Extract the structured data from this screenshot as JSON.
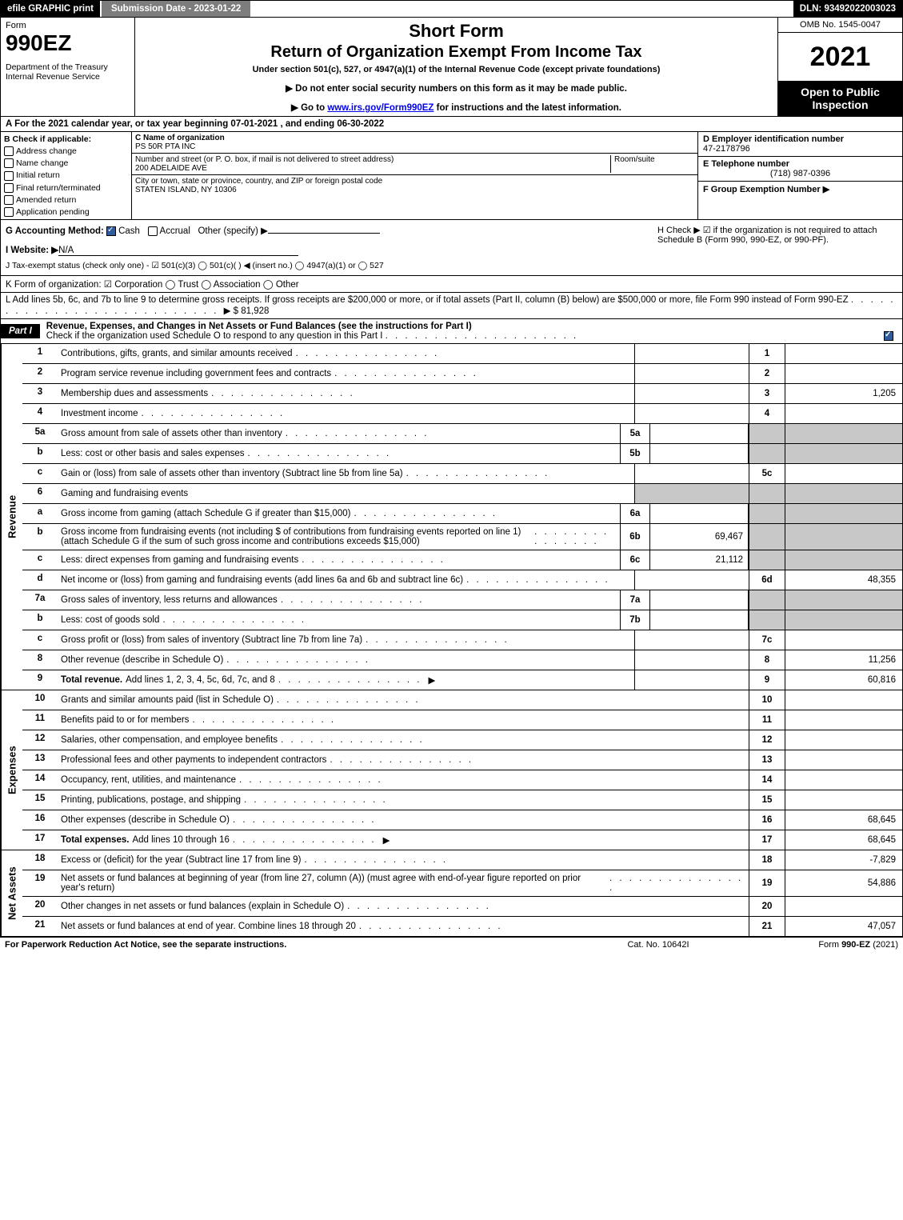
{
  "topbar": {
    "efile": "efile GRAPHIC print",
    "subdate": "Submission Date - 2023-01-22",
    "dln": "DLN: 93492022003023"
  },
  "header": {
    "form_word": "Form",
    "form_num": "990EZ",
    "dept": "Department of the Treasury\nInternal Revenue Service",
    "short": "Short Form",
    "return": "Return of Organization Exempt From Income Tax",
    "under": "Under section 501(c), 527, or 4947(a)(1) of the Internal Revenue Code (except private foundations)",
    "line1": "▶ Do not enter social security numbers on this form as it may be made public.",
    "line2_pre": "▶ Go to ",
    "line2_link": "www.irs.gov/Form990EZ",
    "line2_post": " for instructions and the latest information.",
    "omb": "OMB No. 1545-0047",
    "year": "2021",
    "open": "Open to Public Inspection"
  },
  "a": "A  For the 2021 calendar year, or tax year beginning 07-01-2021 , and ending 06-30-2022",
  "b": {
    "title": "B  Check if applicable:",
    "items": [
      "Address change",
      "Name change",
      "Initial return",
      "Final return/terminated",
      "Amended return",
      "Application pending"
    ]
  },
  "c": {
    "name_lbl": "C Name of organization",
    "name": "PS 50R PTA INC",
    "street_lbl": "Number and street (or P. O. box, if mail is not delivered to street address)",
    "room_lbl": "Room/suite",
    "street": "200 ADELAIDE AVE",
    "city_lbl": "City or town, state or province, country, and ZIP or foreign postal code",
    "city": "STATEN ISLAND, NY  10306"
  },
  "d": {
    "ein_lbl": "D Employer identification number",
    "ein": "47-2178796",
    "tel_lbl": "E Telephone number",
    "tel": "(718) 987-0396",
    "grp_lbl": "F Group Exemption Number   ▶"
  },
  "g": {
    "lbl": "G Accounting Method:",
    "opt1": "Cash",
    "opt2": "Accrual",
    "opt3": "Other (specify) ▶"
  },
  "h": "H   Check ▶ ☑ if the organization is not required to attach Schedule B (Form 990, 990-EZ, or 990-PF).",
  "i": {
    "lbl": "I Website: ▶",
    "val": "N/A"
  },
  "j": "J Tax-exempt status (check only one) - ☑ 501(c)(3)  ◯ 501(c)(  ) ◀ (insert no.)  ◯ 4947(a)(1) or  ◯ 527",
  "k": "K Form of organization:  ☑ Corporation  ◯ Trust  ◯ Association  ◯ Other",
  "l": {
    "text": "L Add lines 5b, 6c, and 7b to line 9 to determine gross receipts. If gross receipts are $200,000 or more, or if total assets (Part II, column (B) below) are $500,000 or more, file Form 990 instead of Form 990-EZ",
    "amount": "▶ $ 81,928"
  },
  "part1": {
    "tab": "Part I",
    "title": "Revenue, Expenses, and Changes in Net Assets or Fund Balances (see the instructions for Part I)",
    "sub": "Check if the organization used Schedule O to respond to any question in this Part I"
  },
  "revenue": [
    {
      "n": "1",
      "d": "Contributions, gifts, grants, and similar amounts received",
      "ln": "1",
      "amt": ""
    },
    {
      "n": "2",
      "d": "Program service revenue including government fees and contracts",
      "ln": "2",
      "amt": ""
    },
    {
      "n": "3",
      "d": "Membership dues and assessments",
      "ln": "3",
      "amt": "1,205"
    },
    {
      "n": "4",
      "d": "Investment income",
      "ln": "4",
      "amt": ""
    },
    {
      "n": "5a",
      "d": "Gross amount from sale of assets other than inventory",
      "sn": "5a",
      "sv": ""
    },
    {
      "n": "b",
      "d": "Less: cost or other basis and sales expenses",
      "sn": "5b",
      "sv": ""
    },
    {
      "n": "c",
      "d": "Gain or (loss) from sale of assets other than inventory (Subtract line 5b from line 5a)",
      "ln": "5c",
      "amt": ""
    },
    {
      "n": "6",
      "d": "Gaming and fundraising events",
      "noamt": true
    },
    {
      "n": "a",
      "d": "Gross income from gaming (attach Schedule G if greater than $15,000)",
      "sn": "6a",
      "sv": ""
    },
    {
      "n": "b",
      "d": "Gross income from fundraising events (not including $                    of contributions from fundraising events reported on line 1) (attach Schedule G if the sum of such gross income and contributions exceeds $15,000)",
      "sn": "6b",
      "sv": "69,467"
    },
    {
      "n": "c",
      "d": "Less: direct expenses from gaming and fundraising events",
      "sn": "6c",
      "sv": "21,112"
    },
    {
      "n": "d",
      "d": "Net income or (loss) from gaming and fundraising events (add lines 6a and 6b and subtract line 6c)",
      "ln": "6d",
      "amt": "48,355"
    },
    {
      "n": "7a",
      "d": "Gross sales of inventory, less returns and allowances",
      "sn": "7a",
      "sv": ""
    },
    {
      "n": "b",
      "d": "Less: cost of goods sold",
      "sn": "7b",
      "sv": ""
    },
    {
      "n": "c",
      "d": "Gross profit or (loss) from sales of inventory (Subtract line 7b from line 7a)",
      "ln": "7c",
      "amt": ""
    },
    {
      "n": "8",
      "d": "Other revenue (describe in Schedule O)",
      "ln": "8",
      "amt": "11,256"
    },
    {
      "n": "9",
      "d": "Total revenue. Add lines 1, 2, 3, 4, 5c, 6d, 7c, and 8",
      "ln": "9",
      "amt": "60,816",
      "bold": true,
      "arrow": true
    }
  ],
  "expenses": [
    {
      "n": "10",
      "d": "Grants and similar amounts paid (list in Schedule O)",
      "ln": "10",
      "amt": ""
    },
    {
      "n": "11",
      "d": "Benefits paid to or for members",
      "ln": "11",
      "amt": ""
    },
    {
      "n": "12",
      "d": "Salaries, other compensation, and employee benefits",
      "ln": "12",
      "amt": ""
    },
    {
      "n": "13",
      "d": "Professional fees and other payments to independent contractors",
      "ln": "13",
      "amt": ""
    },
    {
      "n": "14",
      "d": "Occupancy, rent, utilities, and maintenance",
      "ln": "14",
      "amt": ""
    },
    {
      "n": "15",
      "d": "Printing, publications, postage, and shipping",
      "ln": "15",
      "amt": ""
    },
    {
      "n": "16",
      "d": "Other expenses (describe in Schedule O)",
      "ln": "16",
      "amt": "68,645"
    },
    {
      "n": "17",
      "d": "Total expenses. Add lines 10 through 16",
      "ln": "17",
      "amt": "68,645",
      "bold": true,
      "arrow": true
    }
  ],
  "netassets": [
    {
      "n": "18",
      "d": "Excess or (deficit) for the year (Subtract line 17 from line 9)",
      "ln": "18",
      "amt": "-7,829"
    },
    {
      "n": "19",
      "d": "Net assets or fund balances at beginning of year (from line 27, column (A)) (must agree with end-of-year figure reported on prior year's return)",
      "ln": "19",
      "amt": "54,886"
    },
    {
      "n": "20",
      "d": "Other changes in net assets or fund balances (explain in Schedule O)",
      "ln": "20",
      "amt": ""
    },
    {
      "n": "21",
      "d": "Net assets or fund balances at end of year. Combine lines 18 through 20",
      "ln": "21",
      "amt": "47,057"
    }
  ],
  "section_labels": {
    "rev": "Revenue",
    "exp": "Expenses",
    "net": "Net Assets"
  },
  "footer": {
    "left": "For Paperwork Reduction Act Notice, see the separate instructions.",
    "mid": "Cat. No. 10642I",
    "right_pre": "Form ",
    "right_bold": "990-EZ",
    "right_post": " (2021)"
  },
  "colors": {
    "black": "#000000",
    "grey_bar": "#7d7d7d",
    "shade": "#c8c8c8",
    "check_blue": "#2e5c9e",
    "link": "#0000ee"
  }
}
